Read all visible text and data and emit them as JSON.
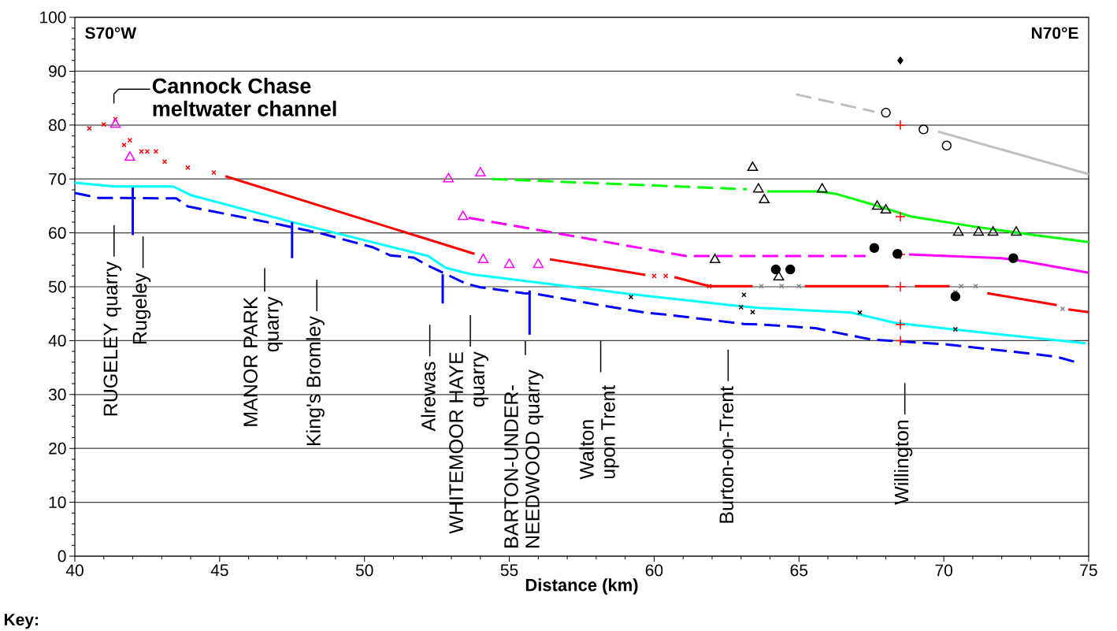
{
  "chart_data": {
    "type": "line",
    "xlabel": "Distance (km)",
    "xlim": [
      40,
      75
    ],
    "ylim": [
      0,
      100
    ],
    "xticks": [
      40,
      45,
      50,
      55,
      60,
      65,
      70,
      75
    ],
    "yticks": [
      0,
      10,
      20,
      30,
      40,
      50,
      60,
      70,
      80,
      90,
      100
    ],
    "grid": "y",
    "series": [
      {
        "color": "#c0c0c0",
        "line_style": "dashed",
        "marker": "none",
        "x": [
          64.9,
          67.6
        ],
        "values": [
          85.7,
          82.5
        ]
      },
      {
        "color": "#c0c0c0",
        "line_style": "solid",
        "marker": "none",
        "x": [
          69.8,
          75.0
        ],
        "values": [
          78.8,
          70.9
        ]
      },
      {
        "color": "#00ff00",
        "line_style": "dashed",
        "marker": "none",
        "x": [
          54.4,
          63.2
        ],
        "values": [
          70.0,
          68.1
        ]
      },
      {
        "color": "#00ff00",
        "line_style": "solid",
        "marker": "none",
        "x": [
          63.9,
          65.7,
          66.3,
          67.4,
          68.9,
          71.0,
          73.1,
          75.0
        ],
        "values": [
          67.7,
          67.7,
          67.2,
          65.5,
          63.0,
          61.2,
          59.6,
          58.3
        ]
      },
      {
        "color": "#ff00ff",
        "line_style": "dashed",
        "marker": "none",
        "x": [
          53.6,
          61.1,
          67.3
        ],
        "values": [
          62.8,
          55.7,
          55.7
        ]
      },
      {
        "color": "#ff00ff",
        "line_style": "solid",
        "marker": "none",
        "x": [
          68.8,
          72.0,
          72.8,
          75.0
        ],
        "values": [
          56.0,
          55.3,
          54.7,
          52.6
        ]
      },
      {
        "color": "#ff0000",
        "line_style": "solid",
        "marker": "none",
        "x": [
          45.2,
          53.8
        ],
        "values": [
          70.5,
          56.1
        ]
      },
      {
        "color": "#ff0000",
        "line_style": "solid",
        "marker": "none",
        "x": [
          56.4,
          59.7
        ],
        "values": [
          55.1,
          52.2
        ]
      },
      {
        "color": "#ff0000",
        "line_style": "solid",
        "marker": "none",
        "x": [
          60.7,
          61.9,
          63.4
        ],
        "values": [
          51.8,
          50.1,
          50.1
        ]
      },
      {
        "color": "#ff0000",
        "line_style": "solid",
        "marker": "none",
        "x": [
          65.2,
          68.1
        ],
        "values": [
          50.1,
          50.1
        ]
      },
      {
        "color": "#ff0000",
        "line_style": "solid",
        "marker": "none",
        "x": [
          69.0,
          70.2
        ],
        "values": [
          50.1,
          50.1
        ]
      },
      {
        "color": "#ff0000",
        "line_style": "solid",
        "marker": "none",
        "x": [
          71.5,
          73.9
        ],
        "values": [
          48.8,
          46.6
        ]
      },
      {
        "color": "#ff0000",
        "line_style": "solid",
        "marker": "none",
        "x": [
          74.3,
          75.0
        ],
        "values": [
          45.8,
          45.3
        ]
      },
      {
        "color": "#00ffff",
        "line_style": "solid",
        "marker": "none",
        "x": [
          40.0,
          41.4,
          43.4,
          44.0,
          47.5,
          51.3,
          52.2,
          52.8,
          53.7,
          59.1,
          62.8,
          63.6,
          66.8,
          68.3,
          70.3,
          74.9
        ],
        "values": [
          69.3,
          68.6,
          68.6,
          67.0,
          62.0,
          56.9,
          55.7,
          53.5,
          52.3,
          48.7,
          46.5,
          46.1,
          45.2,
          43.3,
          42.1,
          39.5
        ]
      },
      {
        "color": "#0000ff",
        "line_style": "dashed",
        "marker": "none",
        "x": [
          40.0,
          40.8,
          43.5,
          43.9,
          47.1,
          48.5,
          50.3,
          50.9,
          51.7,
          52.2,
          53.5,
          54.0,
          55.5,
          55.9,
          57.5,
          58.1,
          59.7,
          60.3,
          63.1,
          63.7,
          65.6,
          66.1,
          67.5,
          70.1,
          73.3,
          73.9,
          74.5
        ],
        "values": [
          67.4,
          66.5,
          66.4,
          64.9,
          61.5,
          59.9,
          57.3,
          55.8,
          55.4,
          53.9,
          50.6,
          49.9,
          48.8,
          48.7,
          47.2,
          46.6,
          45.2,
          44.9,
          43.1,
          43.0,
          42.3,
          41.7,
          40.2,
          39.3,
          37.4,
          37.0,
          36.1
        ]
      },
      {
        "color": "#0000ff",
        "line_style": "solid",
        "marker": "none",
        "x": [
          42.0,
          42.0
        ],
        "values": [
          68.4,
          59.6
        ]
      },
      {
        "color": "#0000ff",
        "line_style": "solid",
        "marker": "none",
        "x": [
          47.5,
          47.5
        ],
        "values": [
          62.0,
          55.3
        ]
      },
      {
        "color": "#0000ff",
        "line_style": "solid",
        "marker": "none",
        "x": [
          52.7,
          52.7
        ],
        "values": [
          52.3,
          46.9
        ]
      },
      {
        "color": "#0000ff",
        "line_style": "solid",
        "marker": "none",
        "x": [
          55.7,
          55.7
        ],
        "values": [
          49.3,
          41.1
        ]
      },
      {
        "type": "scatter",
        "color": "#ff0000",
        "marker": "cross",
        "x": [
          40.5,
          41.0,
          41.4,
          41.7,
          41.9,
          42.3,
          42.5,
          42.8,
          43.1,
          43.9,
          44.8,
          60.0,
          60.4,
          61.9
        ],
        "values": [
          79.4,
          80.1,
          81.1,
          76.3,
          77.2,
          75.1,
          75.1,
          75.1,
          73.2,
          72.1,
          71.2,
          52.0,
          52.0,
          50.1
        ]
      },
      {
        "type": "scatter",
        "color": "#ff00ff",
        "marker": "triangle",
        "x": [
          41.4,
          41.9,
          52.9,
          54.0,
          53.4,
          54.1,
          55.0,
          56.0
        ],
        "values": [
          80.1,
          74.0,
          70.0,
          71.1,
          63.0,
          55.0,
          54.1,
          54.1
        ]
      },
      {
        "type": "scatter",
        "color": "#000000",
        "marker": "cross",
        "x": [
          59.2,
          63.1,
          63.0,
          63.4,
          67.1,
          70.4
        ],
        "values": [
          48.1,
          48.5,
          46.2,
          45.3,
          45.2,
          42.1
        ]
      },
      {
        "type": "scatter",
        "color": "#808080",
        "marker": "cross",
        "x": [
          63.7,
          64.4,
          65.0,
          70.4,
          70.6,
          71.1,
          74.1
        ],
        "values": [
          50.1,
          50.1,
          50.1,
          49.0,
          50.1,
          50.1,
          45.9
        ]
      },
      {
        "type": "scatter",
        "color": "#ff0000",
        "marker": "plus",
        "x": [
          68.5,
          68.5,
          68.5,
          68.5,
          68.5,
          68.5
        ],
        "values": [
          80,
          63,
          56,
          50,
          43,
          40
        ]
      },
      {
        "type": "scatter",
        "color": "#000000",
        "marker": "diamond",
        "x": [
          68.5
        ],
        "values": [
          92.0
        ]
      },
      {
        "type": "scatter",
        "color": "#000000",
        "marker": "circle",
        "x": [
          68.0,
          69.3,
          70.1
        ],
        "values": [
          82.3,
          79.2,
          76.2
        ]
      },
      {
        "type": "scatter",
        "color": "#000000",
        "marker": "dot",
        "x": [
          64.2,
          64.7,
          67.6,
          68.4,
          70.4,
          72.4
        ],
        "values": [
          53.2,
          53.2,
          57.2,
          56.1,
          48.2,
          55.3
        ]
      },
      {
        "type": "scatter",
        "color": "#000000",
        "marker": "triangle",
        "x": [
          63.4,
          63.6,
          63.8,
          65.8,
          67.7,
          68.0,
          62.1,
          70.5,
          71.2,
          71.7,
          72.5,
          64.3
        ],
        "values": [
          72.1,
          68.1,
          66.1,
          68.1,
          64.9,
          64.2,
          55.0,
          60.1,
          60.1,
          60.1,
          60.1,
          51.8
        ]
      }
    ],
    "annotations": [
      "S70°W",
      "N70°E",
      "Cannock Chase meltwater channel",
      "RUGELEY quarry",
      "Rugeley",
      "MANOR PARK quarry",
      "King's Bromley",
      "Alrewas",
      "WHITEMOOR HAYE quarry",
      "BARTON-UNDER-NEEDWOOD quarry",
      "Walton upon Trent",
      "Burton-on-Trent",
      "Willington",
      "Key:"
    ]
  }
}
